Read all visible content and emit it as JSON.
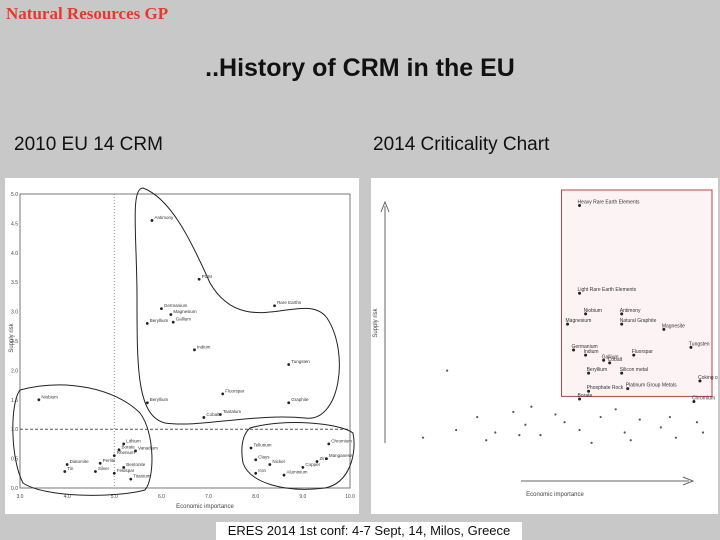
{
  "slide": {
    "brand": "Natural Resources GP",
    "title": "..History of CRM in the EU",
    "left_heading": "2010 EU 14 CRM",
    "right_heading": "2014 Criticality Chart",
    "footer": "ERES 2014 1st conf: 4-7 Sept, 14, Milos, Greece"
  },
  "chart_data": [
    {
      "type": "scatter",
      "xlim": [
        3,
        10
      ],
      "ylim": [
        0,
        5
      ],
      "xticks": [
        "3.0",
        "4.0",
        "5.0",
        "6.0",
        "7.0",
        "8.0",
        "9.0",
        "10.0"
      ],
      "yticks": [
        "0.0",
        "0.5",
        "1.0",
        "1.5",
        "2.0",
        "2.5",
        "3.0",
        "3.5",
        "4.0",
        "4.5",
        "5.0"
      ],
      "xlabel": "Economic importance",
      "ylabel": "Supply risk",
      "threshold_y": 1.0,
      "threshold_x": 5.0,
      "points": [
        {
          "label": "Antimony",
          "x": 5.8,
          "y": 4.55
        },
        {
          "label": "PGM",
          "x": 6.8,
          "y": 3.55
        },
        {
          "label": "Germanium",
          "x": 6.0,
          "y": 3.05
        },
        {
          "label": "Magnesium",
          "x": 6.2,
          "y": 2.95
        },
        {
          "label": "Gallium",
          "x": 6.25,
          "y": 2.82
        },
        {
          "label": "Beryllium",
          "x": 5.7,
          "y": 2.8
        },
        {
          "label": "Indium",
          "x": 6.7,
          "y": 2.35
        },
        {
          "label": "Rare Earths",
          "x": 8.4,
          "y": 3.1
        },
        {
          "label": "Tungsten",
          "x": 8.7,
          "y": 2.1
        },
        {
          "label": "Fluorspar",
          "x": 7.3,
          "y": 1.6
        },
        {
          "label": "Graphite",
          "x": 8.7,
          "y": 1.45
        },
        {
          "label": "Beryllium",
          "x": 5.7,
          "y": 1.45
        },
        {
          "label": "Cobalt",
          "x": 6.9,
          "y": 1.2
        },
        {
          "label": "Tantalum",
          "x": 7.25,
          "y": 1.25
        },
        {
          "label": "Niobium",
          "x": 3.4,
          "y": 1.5
        },
        {
          "label": "Lithium",
          "x": 5.2,
          "y": 0.75
        },
        {
          "label": "Borate",
          "x": 5.1,
          "y": 0.65
        },
        {
          "label": "Vanadium",
          "x": 5.45,
          "y": 0.63
        },
        {
          "label": "Diatomite",
          "x": 4.0,
          "y": 0.4
        },
        {
          "label": "Perlite",
          "x": 4.7,
          "y": 0.42
        },
        {
          "label": "Rhenium",
          "x": 5.0,
          "y": 0.55
        },
        {
          "label": "Bentonite",
          "x": 5.2,
          "y": 0.35
        },
        {
          "label": "Tin",
          "x": 3.95,
          "y": 0.28
        },
        {
          "label": "Silver",
          "x": 4.6,
          "y": 0.28
        },
        {
          "label": "Feldspar",
          "x": 5.0,
          "y": 0.25
        },
        {
          "label": "Titanium",
          "x": 5.35,
          "y": 0.15
        },
        {
          "label": "Tellurium",
          "x": 7.9,
          "y": 0.68
        },
        {
          "label": "Clays",
          "x": 8.0,
          "y": 0.48
        },
        {
          "label": "Nickel",
          "x": 8.3,
          "y": 0.4
        },
        {
          "label": "Iron",
          "x": 8.0,
          "y": 0.25
        },
        {
          "label": "Aluminium",
          "x": 8.6,
          "y": 0.22
        },
        {
          "label": "Chromium",
          "x": 9.55,
          "y": 0.75
        },
        {
          "label": "Zinc",
          "x": 9.3,
          "y": 0.45
        },
        {
          "label": "Manganese",
          "x": 9.5,
          "y": 0.5
        },
        {
          "label": "Copper",
          "x": 9.0,
          "y": 0.35
        }
      ]
    },
    {
      "type": "scatter",
      "xlim": [
        0,
        10
      ],
      "ylim": [
        0,
        5
      ],
      "xlabel": "Economic importance",
      "ylabel": "Supply risk",
      "critical_region": {
        "x_min": 5.0,
        "y_min": 1.0
      },
      "points": [
        {
          "label": "Heavy Rare Earth Elements",
          "x": 5.6,
          "y": 4.7
        },
        {
          "label": "Light Rare Earth Elements",
          "x": 5.6,
          "y": 3.0
        },
        {
          "label": "Niobium",
          "x": 5.8,
          "y": 2.6
        },
        {
          "label": "Antimony",
          "x": 7.0,
          "y": 2.6
        },
        {
          "label": "Magnesium",
          "x": 5.2,
          "y": 2.4
        },
        {
          "label": "Natural Graphite",
          "x": 7.0,
          "y": 2.4
        },
        {
          "label": "Magnesite",
          "x": 8.4,
          "y": 2.3
        },
        {
          "label": "Germanium",
          "x": 5.4,
          "y": 1.9
        },
        {
          "label": "Indium",
          "x": 5.8,
          "y": 1.8
        },
        {
          "label": "Gallium",
          "x": 6.4,
          "y": 1.7
        },
        {
          "label": "Fluorspar",
          "x": 7.4,
          "y": 1.8
        },
        {
          "label": "Tungsten",
          "x": 9.3,
          "y": 1.95
        },
        {
          "label": "Beryllium",
          "x": 5.9,
          "y": 1.45
        },
        {
          "label": "Cobalt",
          "x": 6.6,
          "y": 1.65
        },
        {
          "label": "Silicon metal",
          "x": 7.0,
          "y": 1.45
        },
        {
          "label": "Phosphate Rock",
          "x": 5.9,
          "y": 1.1
        },
        {
          "label": "Platinum Group Metals",
          "x": 7.2,
          "y": 1.15
        },
        {
          "label": "Coking coal",
          "x": 9.6,
          "y": 1.3
        },
        {
          "label": "Borate",
          "x": 5.6,
          "y": 0.95
        },
        {
          "label": "Chromium",
          "x": 9.4,
          "y": 0.9
        }
      ]
    }
  ]
}
